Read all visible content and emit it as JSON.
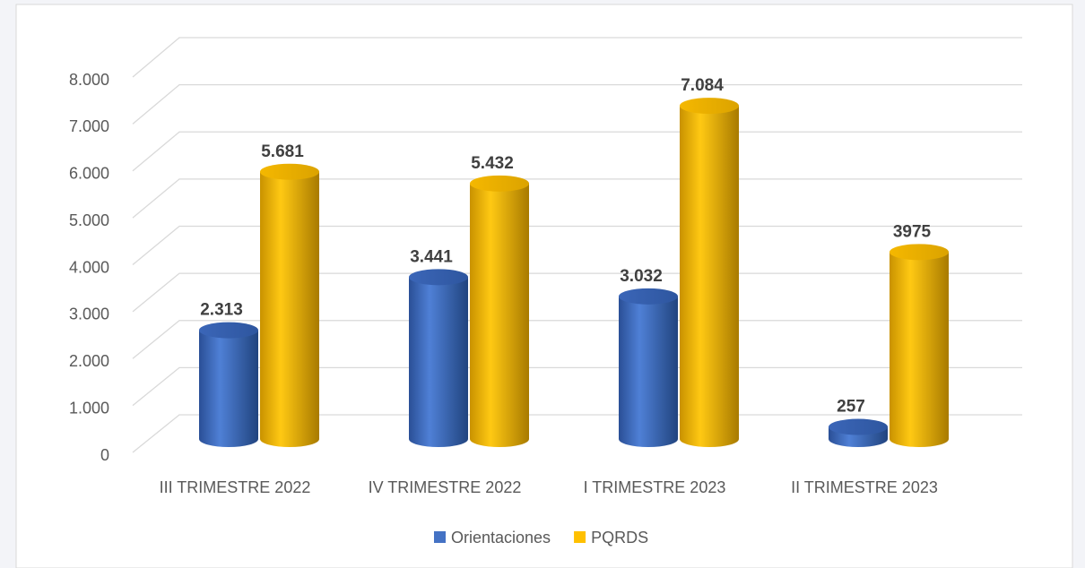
{
  "chart_data": {
    "type": "bar3d",
    "categories": [
      "III TRIMESTRE 2022",
      "IV TRIMESTRE 2022",
      "I TRIMESTRE 2023",
      "II TRIMESTRE 2023"
    ],
    "series": [
      {
        "name": "Orientaciones",
        "color": "#4472c4",
        "values": [
          2313,
          3441,
          3032,
          257
        ],
        "value_labels": [
          "2.313",
          "3.441",
          "3.032",
          "257"
        ]
      },
      {
        "name": "PQRDS",
        "color": "#ffc000",
        "values": [
          5681,
          5432,
          7084,
          3975
        ],
        "value_labels": [
          "5.681",
          "5.432",
          "7.084",
          "3975"
        ]
      }
    ],
    "ylim": [
      0,
      8000
    ],
    "yticks": [
      0,
      {
        "value": 1000,
        "label": "1.000"
      },
      {
        "value": 2000,
        "label": "2.000"
      },
      {
        "value": 3000,
        "label": "3.000"
      },
      {
        "value": 4000,
        "label": "4.000"
      },
      {
        "value": 5000,
        "label": "5.000"
      },
      {
        "value": 6000,
        "label": "6.000"
      },
      {
        "value": 7000,
        "label": "7.000"
      },
      {
        "value": 8000,
        "label": "8.000"
      }
    ],
    "grid": true,
    "legend": "bottom"
  }
}
